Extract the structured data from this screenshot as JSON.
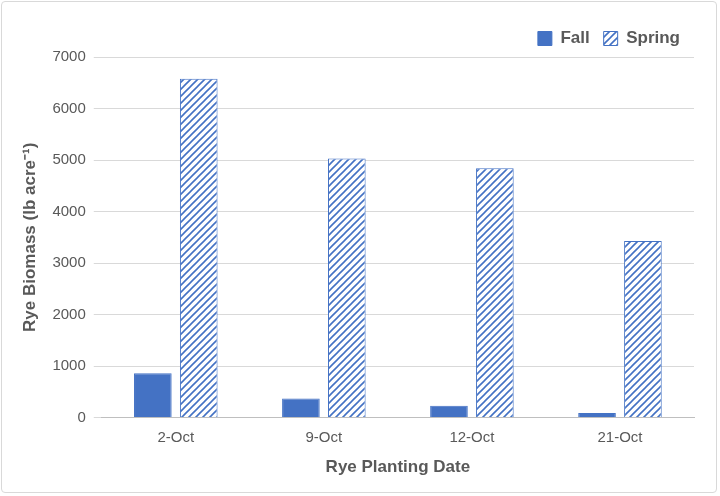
{
  "chart_data": {
    "type": "bar",
    "categories": [
      "2-Oct",
      "9-Oct",
      "12-Oct",
      "21-Oct"
    ],
    "series": [
      {
        "name": "Fall",
        "color": "#4472c4",
        "values": [
          860,
          370,
          230,
          90
        ]
      },
      {
        "name": "Spring",
        "color": "#4472c4",
        "values": [
          6580,
          5030,
          4840,
          3430
        ]
      }
    ],
    "x_label": "Rye Planting Date",
    "y_label": "Rye Biomass (lb acre⁻¹)",
    "ylim": [
      0,
      7000
    ],
    "yticks": [
      0,
      1000,
      2000,
      3000,
      4000,
      5000,
      6000,
      7000
    ],
    "grid": true,
    "legend": "upper right"
  }
}
